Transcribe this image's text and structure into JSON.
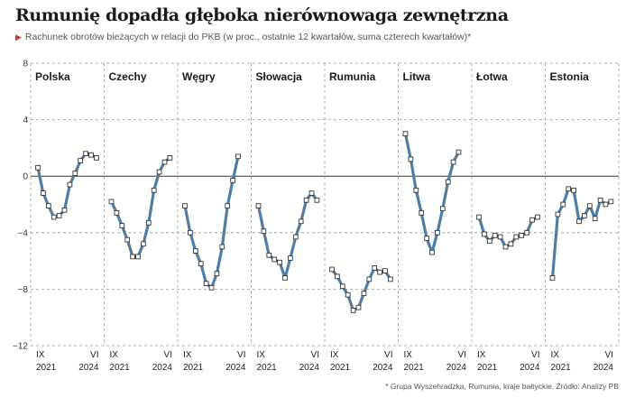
{
  "title": "Rumunię dopadła głęboka nierównowaga zewnętrzna",
  "subtitle": "Rachunek obrotów bieżących w relacji do PKB  (w proc., ostatnie 12 kwartałów, suma czterech kwartałów)*",
  "source": "* Grupa Wyszehradzka, Rumunia, kraje bałtyckie. Źródło: Analizy PB",
  "colors": {
    "line": "#4f7da3",
    "marker_fill": "#ffffff",
    "marker_stroke": "#333333",
    "grid": "#9a9a9a",
    "zero_line": "#333333",
    "subtitle_marker": "#d0342c"
  },
  "chart_data": {
    "type": "line",
    "ylim": [
      -12,
      8
    ],
    "yticks": [
      8,
      4,
      0,
      -4,
      -8,
      -12
    ],
    "grid": "dashed",
    "x_tick_labels": [
      [
        "IX",
        "2021"
      ],
      [
        "VI",
        "2024"
      ]
    ],
    "panels": [
      {
        "name": "Polska",
        "values": [
          0.6,
          -1.2,
          -2.1,
          -2.9,
          -2.8,
          -2.4,
          -0.6,
          0.2,
          1.1,
          1.6,
          1.5,
          1.3
        ]
      },
      {
        "name": "Czechy",
        "values": [
          -1.8,
          -2.6,
          -3.5,
          -4.5,
          -5.7,
          -5.7,
          -4.8,
          -3.3,
          -1.0,
          0.3,
          1.0,
          1.3
        ]
      },
      {
        "name": "Węgry",
        "values": [
          -2.1,
          -4.0,
          -5.3,
          -6.2,
          -7.6,
          -7.9,
          -6.9,
          -5.0,
          -2.1,
          -0.3,
          1.4,
          null
        ]
      },
      {
        "name": "Słowacja",
        "values": [
          -2.1,
          -3.9,
          -5.6,
          -5.9,
          -6.1,
          -7.2,
          -5.8,
          -4.3,
          -3.2,
          -1.7,
          -1.2,
          -1.7
        ]
      },
      {
        "name": "Rumunia",
        "values": [
          -6.6,
          -7.1,
          -7.8,
          -8.4,
          -9.5,
          -9.3,
          -8.3,
          -7.3,
          -6.5,
          -6.8,
          -6.7,
          -7.3
        ]
      },
      {
        "name": "Litwa",
        "values": [
          3.0,
          1.2,
          -1.0,
          -2.6,
          -4.4,
          -5.4,
          -4.0,
          -2.3,
          -0.4,
          1.0,
          1.7,
          null
        ]
      },
      {
        "name": "Łotwa",
        "values": [
          -2.9,
          -4.1,
          -4.6,
          -4.2,
          -4.3,
          -5.0,
          -4.8,
          -4.3,
          -4.2,
          -4.0,
          -3.1,
          -2.9
        ]
      },
      {
        "name": "Estonia",
        "values": [
          -7.2,
          -2.7,
          -2.0,
          -0.9,
          -1.0,
          -3.2,
          -2.8,
          -2.1,
          -3.0,
          -1.7,
          -2.0,
          -1.8
        ]
      }
    ]
  }
}
